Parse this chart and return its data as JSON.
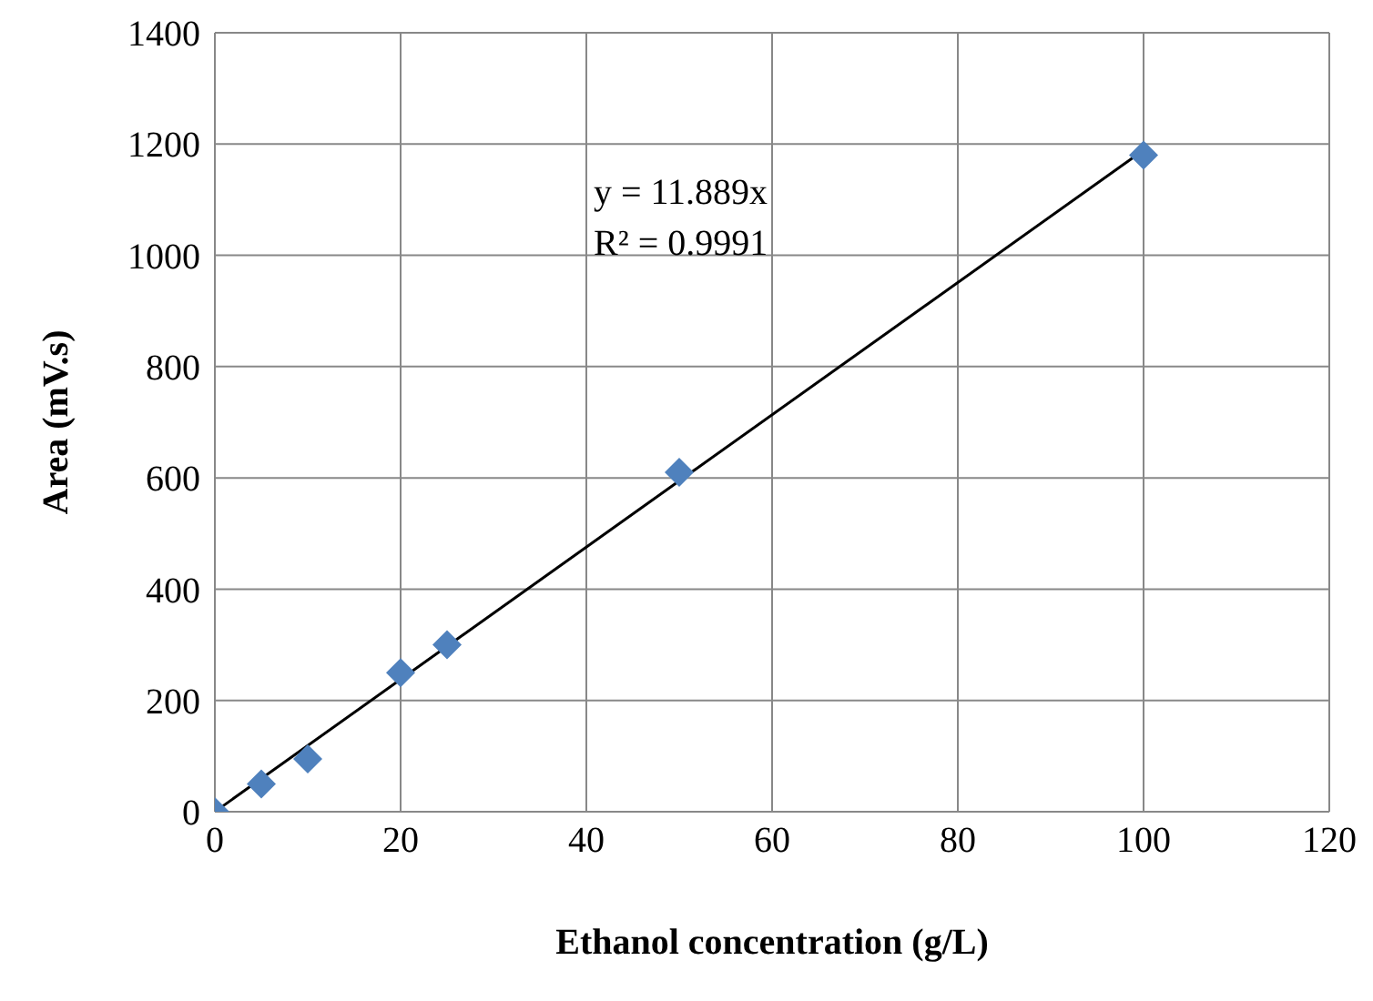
{
  "chart_data": {
    "type": "scatter",
    "xlabel": "Ethanol concentration (g/L)",
    "ylabel": "Area (mV.s)",
    "x": [
      0,
      5,
      10,
      20,
      25,
      50,
      100
    ],
    "series": [
      {
        "color": "#4f81bd",
        "marker": "diamond",
        "values": [
          0,
          50,
          95,
          250,
          300,
          610,
          1180
        ]
      },
      {
        "type": "line",
        "color": "#000000",
        "x": [
          0,
          100
        ],
        "values": [
          0,
          1189
        ]
      }
    ],
    "annotations": [
      "y = 11.889x",
      "R² = 0.9991"
    ],
    "xlim": [
      0,
      120
    ],
    "xticks": [
      0,
      20,
      40,
      60,
      80,
      100,
      120
    ],
    "ylim": [
      0,
      1400
    ],
    "yticks": [
      0,
      200,
      400,
      600,
      800,
      1000,
      1200,
      1400
    ],
    "grid": true,
    "legend": false
  }
}
